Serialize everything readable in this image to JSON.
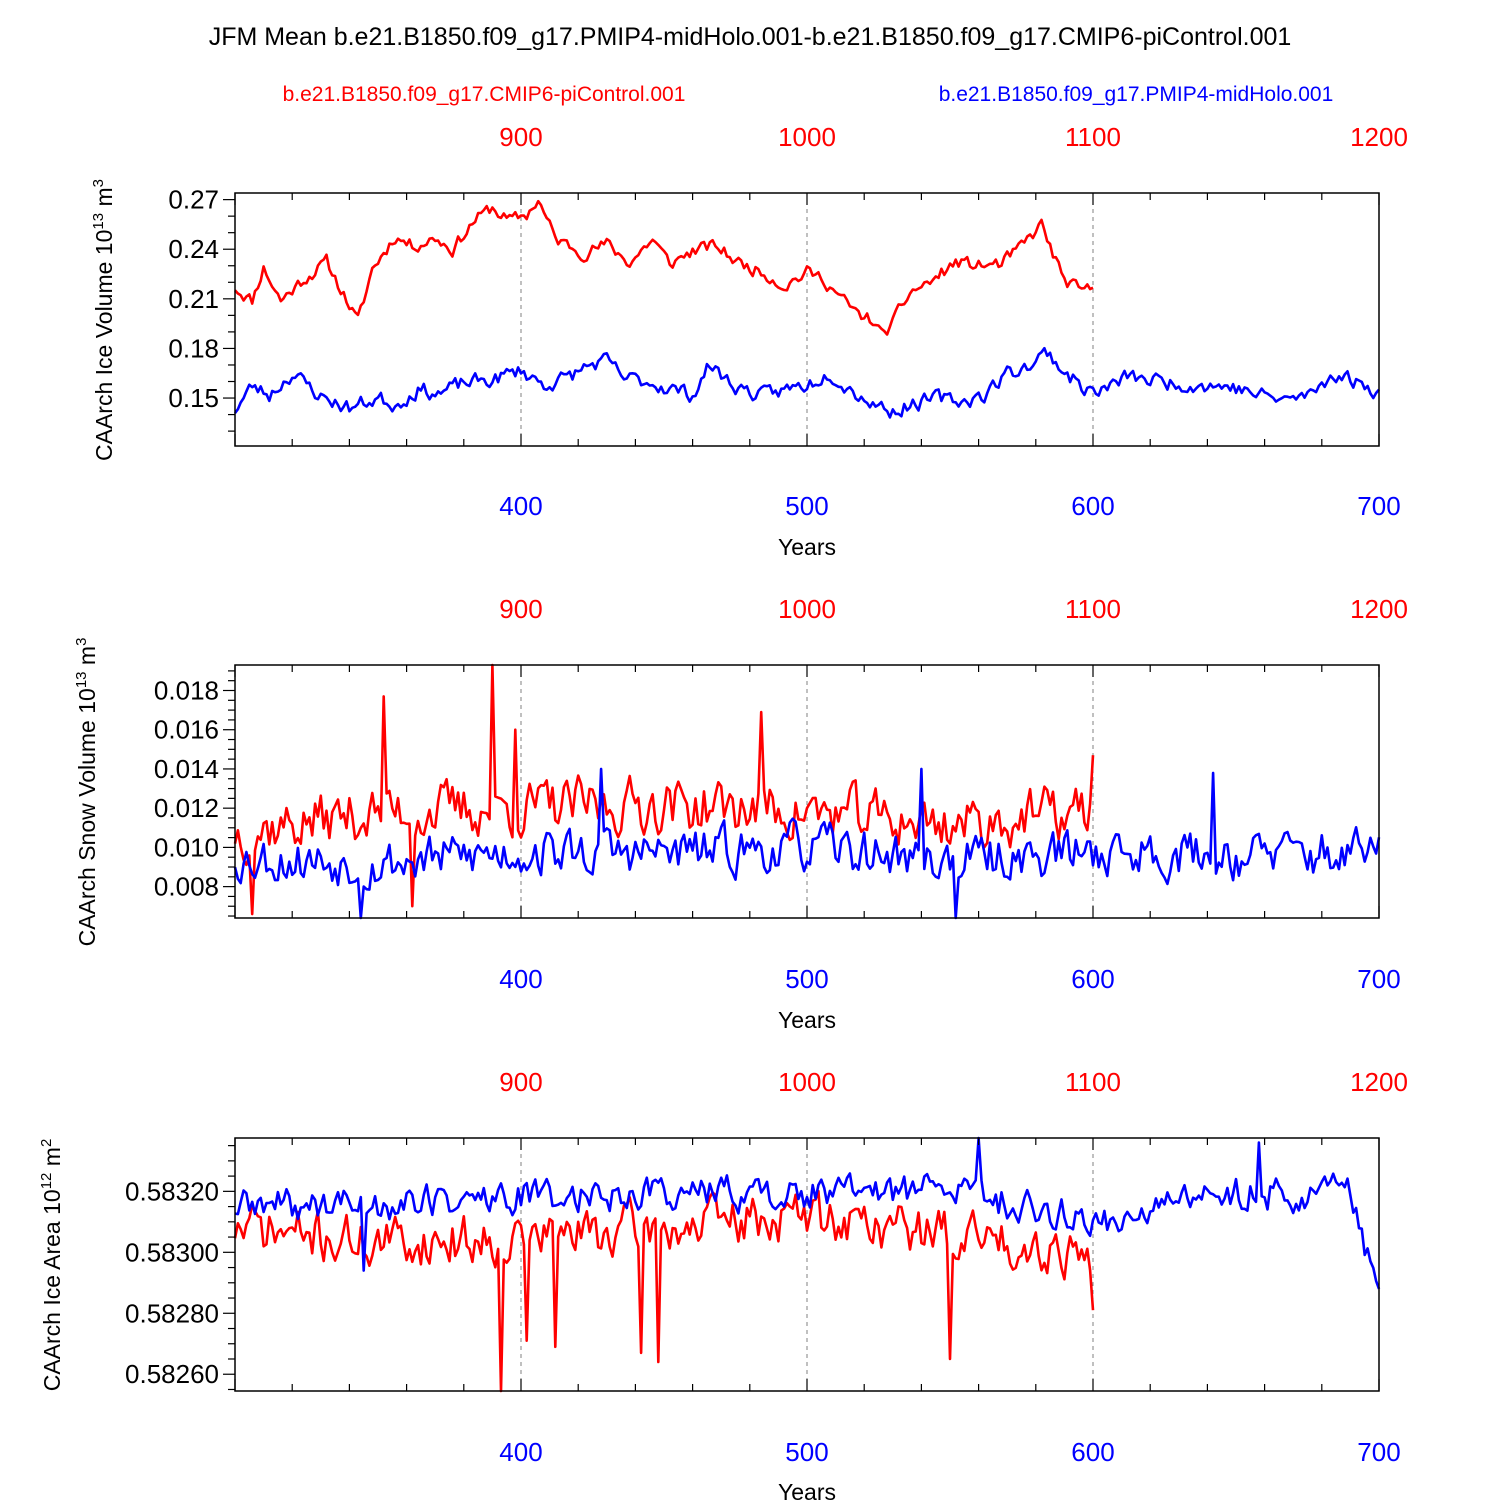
{
  "title": "JFM Mean b.e21.B1850.f09_g17.PMIP4-midHolo.001-b.e21.B1850.f09_g17.CMIP6-piControl.001",
  "legend": {
    "left": "b.e21.B1850.f09_g17.CMIP6-piControl.001",
    "right": "b.e21.B1850.f09_g17.PMIP4-midHolo.001"
  },
  "colors": {
    "control": "#ff0000",
    "midholo": "#0000ff",
    "axis": "#000000",
    "grid": "#808080"
  },
  "chart_data": [
    {
      "type": "line",
      "id": "ice-volume",
      "ylabel_main": "CAArch Ice Volume 10",
      "ylabel_exp": "13",
      "ylabel_unit": " m",
      "ylabel_unit_exp": "3",
      "xlabel": "Years",
      "x_bottom": {
        "range": [
          300,
          700
        ],
        "ticks": [
          "400",
          "500",
          "600",
          "700"
        ],
        "tick_values": [
          400,
          500,
          600,
          700
        ]
      },
      "x_top": {
        "range": [
          800,
          1200
        ],
        "ticks": [
          "900",
          "1000",
          "1100",
          "1200"
        ],
        "tick_values": [
          900,
          1000,
          1100,
          1200
        ]
      },
      "ylim": [
        0.121,
        0.274
      ],
      "yticks": [
        "0.15",
        "0.18",
        "0.21",
        "0.24",
        "0.27"
      ],
      "ytick_values": [
        0.15,
        0.18,
        0.21,
        0.24,
        0.27
      ],
      "yminor_step": 0.01,
      "ystart": 0.13,
      "series": [
        {
          "name": "b.e21.B1850.f09_g17.CMIP6-piControl.001",
          "color": "#ff0000",
          "axis": "top",
          "anchors": [
            [
              800,
              0.217
            ],
            [
              806,
              0.209
            ],
            [
              810,
              0.229
            ],
            [
              816,
              0.209
            ],
            [
              824,
              0.222
            ],
            [
              832,
              0.232
            ],
            [
              838,
              0.213
            ],
            [
              843,
              0.196
            ],
            [
              848,
              0.228
            ],
            [
              856,
              0.248
            ],
            [
              862,
              0.242
            ],
            [
              870,
              0.247
            ],
            [
              876,
              0.24
            ],
            [
              884,
              0.258
            ],
            [
              890,
              0.265
            ],
            [
              896,
              0.257
            ],
            [
              902,
              0.261
            ],
            [
              906,
              0.27
            ],
            [
              912,
              0.246
            ],
            [
              922,
              0.238
            ],
            [
              930,
              0.243
            ],
            [
              938,
              0.232
            ],
            [
              946,
              0.246
            ],
            [
              952,
              0.231
            ],
            [
              960,
              0.239
            ],
            [
              968,
              0.242
            ],
            [
              976,
              0.232
            ],
            [
              986,
              0.225
            ],
            [
              992,
              0.218
            ],
            [
              1000,
              0.226
            ],
            [
              1006,
              0.222
            ],
            [
              1012,
              0.21
            ],
            [
              1018,
              0.2
            ],
            [
              1023,
              0.197
            ],
            [
              1026,
              0.188
            ],
            [
              1030,
              0.195
            ],
            [
              1036,
              0.214
            ],
            [
              1044,
              0.221
            ],
            [
              1052,
              0.232
            ],
            [
              1060,
              0.23
            ],
            [
              1068,
              0.231
            ],
            [
              1076,
              0.243
            ],
            [
              1082,
              0.255
            ],
            [
              1086,
              0.237
            ],
            [
              1090,
              0.221
            ],
            [
              1096,
              0.214
            ],
            [
              1100,
              0.216
            ]
          ],
          "noise": 0.0065,
          "seed": 11
        },
        {
          "name": "b.e21.B1850.f09_g17.PMIP4-midHolo.001",
          "color": "#0000ff",
          "axis": "bottom",
          "anchors": [
            [
              300,
              0.143
            ],
            [
              306,
              0.157
            ],
            [
              312,
              0.152
            ],
            [
              320,
              0.165
            ],
            [
              330,
              0.151
            ],
            [
              340,
              0.144
            ],
            [
              350,
              0.15
            ],
            [
              356,
              0.146
            ],
            [
              364,
              0.155
            ],
            [
              372,
              0.153
            ],
            [
              380,
              0.159
            ],
            [
              390,
              0.161
            ],
            [
              400,
              0.167
            ],
            [
              408,
              0.158
            ],
            [
              416,
              0.162
            ],
            [
              424,
              0.17
            ],
            [
              430,
              0.172
            ],
            [
              436,
              0.162
            ],
            [
              444,
              0.16
            ],
            [
              452,
              0.156
            ],
            [
              460,
              0.152
            ],
            [
              466,
              0.17
            ],
            [
              474,
              0.158
            ],
            [
              484,
              0.151
            ],
            [
              492,
              0.155
            ],
            [
              500,
              0.158
            ],
            [
              508,
              0.166
            ],
            [
              514,
              0.157
            ],
            [
              522,
              0.148
            ],
            [
              530,
              0.142
            ],
            [
              536,
              0.146
            ],
            [
              546,
              0.15
            ],
            [
              554,
              0.148
            ],
            [
              562,
              0.152
            ],
            [
              570,
              0.165
            ],
            [
              578,
              0.17
            ],
            [
              584,
              0.178
            ],
            [
              590,
              0.166
            ],
            [
              596,
              0.157
            ],
            [
              602,
              0.153
            ],
            [
              612,
              0.163
            ],
            [
              624,
              0.16
            ],
            [
              636,
              0.158
            ],
            [
              648,
              0.157
            ],
            [
              660,
              0.151
            ],
            [
              668,
              0.149
            ],
            [
              676,
              0.152
            ],
            [
              684,
              0.165
            ],
            [
              692,
              0.16
            ],
            [
              700,
              0.154
            ]
          ],
          "noise": 0.0075,
          "seed": 23
        }
      ]
    },
    {
      "type": "line",
      "id": "snow-volume",
      "ylabel_main": "CAArch Snow Volume 10",
      "ylabel_exp": "13",
      "ylabel_unit": " m",
      "ylabel_unit_exp": "3",
      "xlabel": "Years",
      "x_bottom": {
        "range": [
          300,
          700
        ],
        "ticks": [
          "400",
          "500",
          "600",
          "700"
        ],
        "tick_values": [
          400,
          500,
          600,
          700
        ]
      },
      "x_top": {
        "range": [
          800,
          1200
        ],
        "ticks": [
          "900",
          "1000",
          "1100",
          "1200"
        ],
        "tick_values": [
          900,
          1000,
          1100,
          1200
        ]
      },
      "ylim": [
        0.0064,
        0.0193
      ],
      "yticks": [
        "0.008",
        "0.010",
        "0.012",
        "0.014",
        "0.016",
        "0.018"
      ],
      "ytick_values": [
        0.008,
        0.01,
        0.012,
        0.014,
        0.016,
        0.018
      ],
      "yminor_step": 0.0005,
      "ystart": 0.0065,
      "series": [
        {
          "name": "b.e21.B1850.f09_g17.CMIP6-piControl.001",
          "color": "#ff0000",
          "axis": "top",
          "anchors": [
            [
              800,
              0.0108
            ],
            [
              850,
              0.0118
            ],
            [
              900,
              0.012
            ],
            [
              950,
              0.0122
            ],
            [
              1000,
              0.0118
            ],
            [
              1050,
              0.0112
            ],
            [
              1100,
              0.0118
            ]
          ],
          "noise": 0.0022,
          "seed": 37,
          "spikes": [
            [
              852,
              0.0177
            ],
            [
              890,
              0.0193
            ],
            [
              898,
              0.016
            ],
            [
              984,
              0.0169
            ],
            [
              1100,
              0.0147
            ],
            [
              806,
              0.0066
            ],
            [
              862,
              0.007
            ]
          ]
        },
        {
          "name": "b.e21.B1850.f09_g17.PMIP4-midHolo.001",
          "color": "#0000ff",
          "axis": "bottom",
          "anchors": [
            [
              300,
              0.0095
            ],
            [
              350,
              0.0092
            ],
            [
              400,
              0.0098
            ],
            [
              450,
              0.0097
            ],
            [
              500,
              0.01
            ],
            [
              550,
              0.0093
            ],
            [
              600,
              0.0098
            ],
            [
              650,
              0.0096
            ],
            [
              700,
              0.0097
            ]
          ],
          "noise": 0.0019,
          "seed": 53,
          "spikes": [
            [
              552,
              0.0064
            ],
            [
              344,
              0.0064
            ],
            [
              428,
              0.014
            ],
            [
              540,
              0.014
            ],
            [
              642,
              0.0138
            ]
          ]
        }
      ]
    },
    {
      "type": "line",
      "id": "ice-area",
      "ylabel_main": "CAArch Ice Area 10",
      "ylabel_exp": "12",
      "ylabel_unit": " m",
      "ylabel_unit_exp": "2",
      "xlabel": "Years",
      "x_bottom": {
        "range": [
          300,
          700
        ],
        "ticks": [
          "400",
          "500",
          "600",
          "700"
        ],
        "tick_values": [
          400,
          500,
          600,
          700
        ]
      },
      "x_top": {
        "range": [
          800,
          1200
        ],
        "ticks": [
          "900",
          "1000",
          "1100",
          "1200"
        ],
        "tick_values": [
          900,
          1000,
          1100,
          1200
        ]
      },
      "ylim": [
        0.582545,
        0.583375
      ],
      "yticks": [
        "0.58260",
        "0.58280",
        "0.58300",
        "0.58320"
      ],
      "ytick_values": [
        0.5826,
        0.5828,
        0.583,
        0.5832
      ],
      "yminor_step": 5e-05,
      "ystart": 0.58255,
      "series": [
        {
          "name": "b.e21.B1850.f09_g17.CMIP6-piControl.001",
          "color": "#ff0000",
          "axis": "top",
          "anchors": [
            [
              800,
              0.58308
            ],
            [
              850,
              0.58303
            ],
            [
              900,
              0.58305
            ],
            [
              950,
              0.58308
            ],
            [
              1000,
              0.58312
            ],
            [
              1050,
              0.58306
            ],
            [
              1100,
              0.583
            ]
          ],
          "noise": 0.00013,
          "seed": 71,
          "spikes": [
            [
              893,
              0.582545
            ],
            [
              902,
              0.58271
            ],
            [
              912,
              0.58269
            ],
            [
              942,
              0.58267
            ],
            [
              948,
              0.58264
            ],
            [
              1050,
              0.58265
            ],
            [
              1100,
              0.58281
            ]
          ]
        },
        {
          "name": "b.e21.B1850.f09_g17.PMIP4-midHolo.001",
          "color": "#0000ff",
          "axis": "bottom",
          "anchors": [
            [
              300,
              0.58315
            ],
            [
              350,
              0.58316
            ],
            [
              400,
              0.58318
            ],
            [
              450,
              0.5832
            ],
            [
              500,
              0.58319
            ],
            [
              550,
              0.58321
            ],
            [
              600,
              0.5831
            ],
            [
              650,
              0.5832
            ],
            [
              690,
              0.58319
            ],
            [
              700,
              0.58288
            ]
          ],
          "noise": 9e-05,
          "seed": 89,
          "spikes": [
            [
              560,
              0.583375
            ],
            [
              658,
              0.58336
            ],
            [
              345,
              0.58294
            ],
            [
              700,
              0.58288
            ]
          ]
        }
      ]
    }
  ]
}
